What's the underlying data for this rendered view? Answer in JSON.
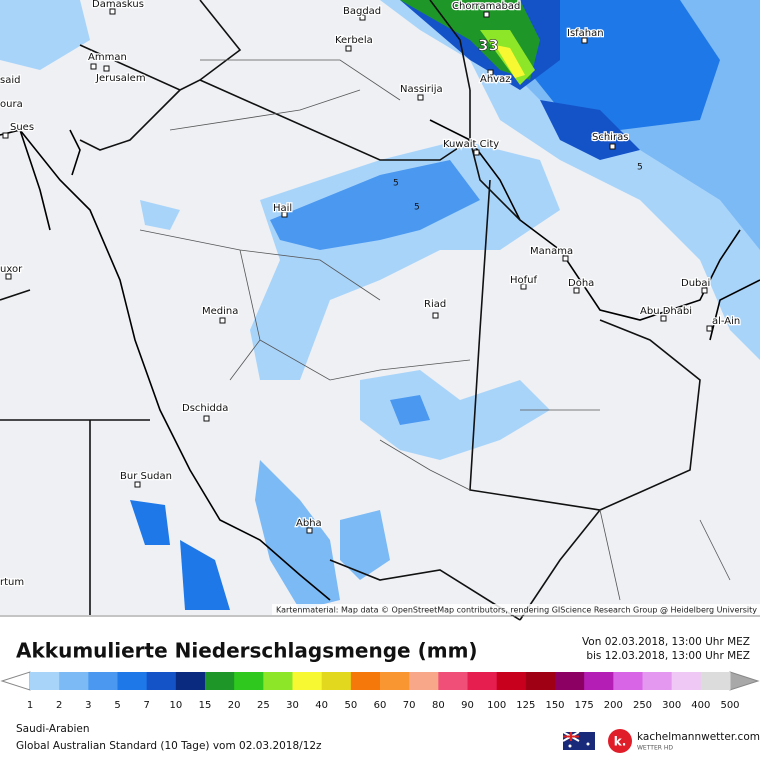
{
  "map": {
    "cities": [
      "Damaskus",
      "Bagdad",
      "Chorramabad",
      "Kerbela",
      "Amman",
      "Jerusalem",
      "Isfahan",
      "Ahvaz",
      "Nassirija",
      "said",
      "oura",
      "Sues",
      "Schiras",
      "Kuwait City",
      "Hail",
      "Manama",
      "Hofuf",
      "Doha",
      "Dubai",
      "uxor",
      "Riad",
      "Medina",
      "Abu Dhabi",
      "al-Ain",
      "Dschidda",
      "Bur Sudan",
      "Abha",
      "rtum"
    ],
    "maximum": "33",
    "contour_labels": [
      "5",
      "5",
      "5"
    ],
    "attribution": "Kartenmaterial: Map data © OpenStreetMap contributors, rendering GIScience Research Group @ Heidelberg University"
  },
  "footer": {
    "title": "Akkumulierte Niederschlagsmenge (mm)",
    "from": "Von 02.03.2018, 13:00 Uhr MEZ",
    "to": "bis 12.03.2018, 13:00 Uhr MEZ",
    "region": "Saudi-Arabien",
    "model": "Global Australian Standard (10 Tage) vom 02.03.2018/12z",
    "brand": "kachelmannwetter.com",
    "brand_sub": "WETTER HD",
    "logo_letter": "k."
  },
  "legend": {
    "labels": [
      "1",
      "2",
      "3",
      "5",
      "7",
      "10",
      "15",
      "20",
      "25",
      "30",
      "40",
      "50",
      "60",
      "70",
      "80",
      "90",
      "100",
      "125",
      "150",
      "175",
      "200",
      "250",
      "300",
      "400",
      "500"
    ],
    "colors": [
      "#a9d4fa",
      "#7cbaf5",
      "#4a98f0",
      "#1f78e8",
      "#1452c8",
      "#0a2a80",
      "#1e9628",
      "#2ec81e",
      "#8ee628",
      "#f8f832",
      "#e2d81e",
      "#f5780a",
      "#fa9632",
      "#f8a888",
      "#f05078",
      "#e61e50",
      "#c8001e",
      "#a00014",
      "#8c0064",
      "#b41eb4",
      "#d864e6",
      "#e498f0",
      "#f0c8f5",
      "#dcdcdc"
    ]
  }
}
